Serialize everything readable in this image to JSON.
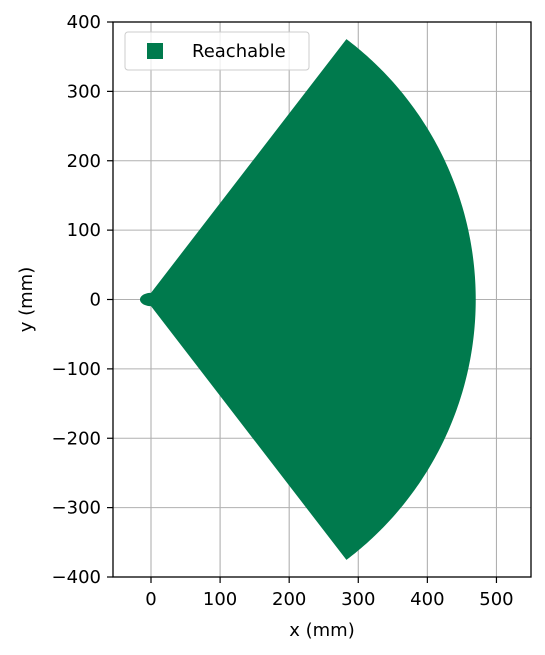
{
  "chart_data": {
    "type": "area",
    "title": "",
    "xlabel": "x (mm)",
    "ylabel": "y (mm)",
    "xlim": [
      -55,
      550
    ],
    "ylim": [
      -400,
      400
    ],
    "xticks": [
      0,
      100,
      200,
      300,
      400,
      500
    ],
    "yticks": [
      -400,
      -300,
      -200,
      -100,
      0,
      100,
      200,
      300,
      400
    ],
    "xtick_labels": [
      "0",
      "100",
      "200",
      "300",
      "400",
      "500"
    ],
    "ytick_labels": [
      "−400",
      "−300",
      "−200",
      "−100",
      "0",
      "100",
      "200",
      "300",
      "400"
    ],
    "grid": true,
    "legend_position": "top-left",
    "series": [
      {
        "name": "Reachable",
        "color": "#007a4d",
        "region": {
          "shape": "annular-sector",
          "center": [
            0,
            0
          ],
          "inner_radius_mm": 16,
          "outer_radius_mm": 470,
          "angle_range_deg": [
            -53,
            53
          ]
        }
      }
    ]
  }
}
